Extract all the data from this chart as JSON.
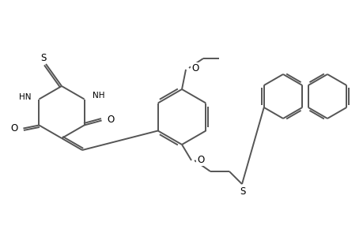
{
  "bg_color": "#ffffff",
  "line_color": "#555555",
  "line_width": 1.4,
  "figsize": [
    4.6,
    3.0
  ],
  "dpi": 100,
  "xlim": [
    0,
    460
  ],
  "ylim": [
    0,
    300
  ]
}
